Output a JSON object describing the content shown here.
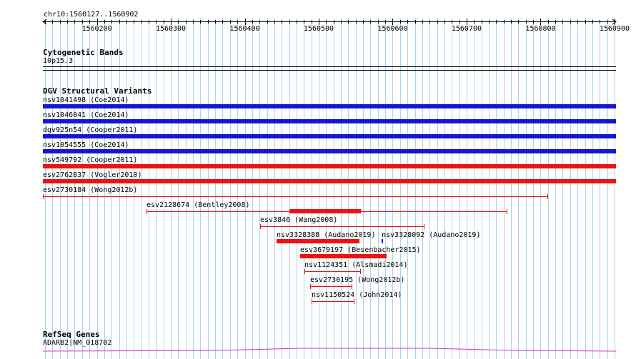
{
  "ruler": {
    "region_label": "chr10:1560127..1560902",
    "ticks": [
      "1560200",
      "1560300",
      "1560400",
      "1560500",
      "1560600",
      "1560700",
      "1560800",
      "1560900"
    ]
  },
  "cytoband": {
    "title": "Cytogenetic Bands",
    "label": "10p15.3"
  },
  "dgv": {
    "title": "DGV Structural Variants",
    "features": [
      {
        "label": "nsv1041498 (Coe2014)",
        "start": 1560127,
        "end": 1560902,
        "color": "#1515d4",
        "style": "thick"
      },
      {
        "label": "nsv1046041 (Coe2014)",
        "start": 1560127,
        "end": 1560902,
        "color": "#1515d4",
        "style": "thick"
      },
      {
        "label": "dgv925n54 (Cooper2011)",
        "start": 1560127,
        "end": 1560902,
        "color": "#1515d4",
        "style": "thick"
      },
      {
        "label": "nsv1054555 (Coe2014)",
        "start": 1560127,
        "end": 1560902,
        "color": "#1515d4",
        "style": "thick"
      },
      {
        "label": "nsv549792 (Cooper2011)",
        "start": 1560127,
        "end": 1560902,
        "color": "#ee1111",
        "style": "thick"
      },
      {
        "label": "esv2762837 (Vogler2010)",
        "start": 1560127,
        "end": 1560902,
        "color": "#ee1111",
        "style": "thick"
      },
      {
        "label": "esv2730184 (Wong2012b)",
        "start": 1560127,
        "end": 1560810,
        "color": "#ee1111",
        "style": "thin"
      },
      {
        "label": "esv2128674 (Bentley2008)",
        "start": 1560267,
        "end": 1560755,
        "color": "#ee1111",
        "style": "thin",
        "inner_start": 1560460,
        "inner_end": 1560557
      },
      {
        "label": "esv3846 (Wang2008)",
        "start": 1560421,
        "end": 1560643,
        "color": "#ee1111",
        "style": "thin"
      },
      {
        "label": "nsv3328388 (Audano2019)",
        "start": 1560443,
        "end": 1560555,
        "color": "#ee1111",
        "style": "thick"
      },
      {
        "label": "nsv3328092 (Audano2019)",
        "start": 1560585,
        "end": 1560587,
        "color": "#1515d4",
        "style": "thick"
      },
      {
        "label": "esv3679197 (Besenbacher2015)",
        "start": 1560475,
        "end": 1560592,
        "color": "#ee1111",
        "style": "thick"
      },
      {
        "label": "nsv1124351 (Alsmadi2014)",
        "start": 1560481,
        "end": 1560557,
        "color": "#ee1111",
        "style": "thin"
      },
      {
        "label": "esv2730195 (Wong2012b)",
        "start": 1560488,
        "end": 1560545,
        "color": "#ee1111",
        "style": "thin"
      },
      {
        "label": "nsv1150524 (John2014)",
        "start": 1560490,
        "end": 1560548,
        "color": "#ee1111",
        "style": "thin"
      }
    ]
  },
  "refseq": {
    "title": "RefSeq Genes",
    "label": "ADARB2|NM_018702"
  },
  "colors": {
    "grid": "#a8d4ec",
    "blue": "#1515d4",
    "red": "#ee1111",
    "gene": "#cc33cc"
  }
}
